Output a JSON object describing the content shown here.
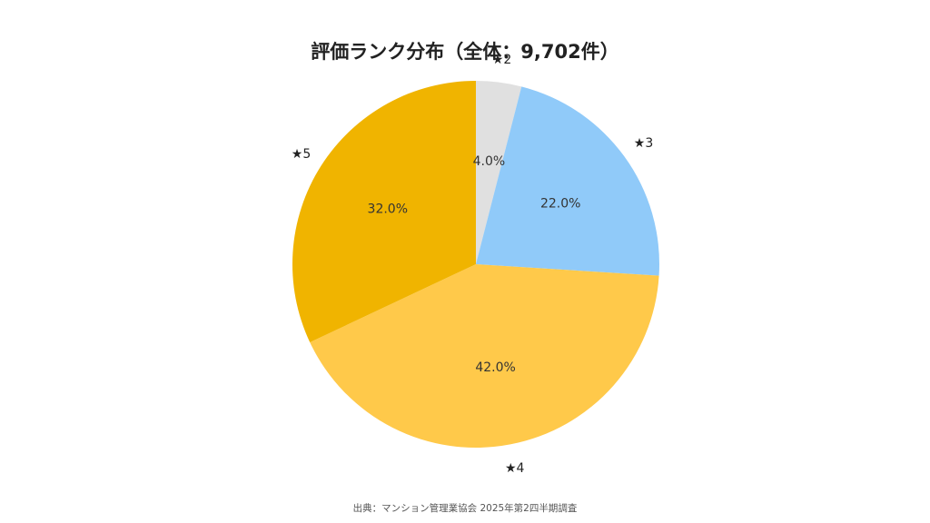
{
  "chart_data": {
    "type": "pie",
    "title": "評価ランク分布（全体：9,702件）",
    "categories": [
      "★2",
      "★3",
      "★4",
      "★5"
    ],
    "values": [
      4.0,
      22.0,
      42.0,
      32.0
    ],
    "value_labels": [
      "4.0%",
      "22.0%",
      "42.0%",
      "32.0%"
    ],
    "colors": [
      "#E0E0E0",
      "#90CAF9",
      "#FFC94A",
      "#F0B400"
    ],
    "start_angle": "12 o'clock",
    "direction": "clockwise",
    "legend": "none"
  },
  "source_note": "出典：マンション管理業協会 2025年第2四半期調査"
}
